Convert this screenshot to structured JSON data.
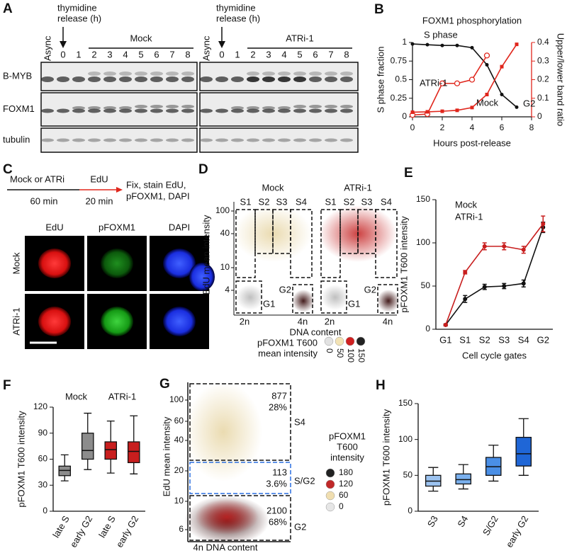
{
  "panel_a": {
    "letter": "A",
    "thymidine_release": [
      "thymidine",
      "release (h)"
    ],
    "lanes": [
      "Async",
      "0",
      "1",
      "2",
      "3",
      "4",
      "5",
      "6",
      "7",
      "8"
    ],
    "conditions": [
      "Mock",
      "ATRi-1"
    ],
    "rows": [
      "B-MYB",
      "FOXM1",
      "tubulin"
    ]
  },
  "panel_c": {
    "letter": "C",
    "treatment": "Mock or ATRi",
    "treatment_time": "60 min",
    "pulse": "EdU",
    "pulse_time": "20 min",
    "fix": [
      "Fix, stain EdU,",
      "pFOXM1, DAPI"
    ],
    "channels": [
      "EdU",
      "pFOXM1",
      "DAPI"
    ],
    "conditions": [
      "Mock",
      "ATRi-1"
    ]
  },
  "panel_d": {
    "letter": "D",
    "conditions": [
      "Mock",
      "ATRi-1"
    ],
    "gates": [
      "S1",
      "S2",
      "S3",
      "S4"
    ],
    "g1": "G1",
    "g2": "G2",
    "y_title": "EdU mean intensity",
    "y_ticks": [
      "100",
      "40",
      "10",
      "4"
    ],
    "x_ticks": [
      "2n",
      "4n"
    ],
    "x_title": "DNA content",
    "legend_title": [
      "pFOXM1 T600",
      "mean intensity"
    ],
    "legend_levels": [
      "0",
      "50",
      "100",
      "150"
    ]
  },
  "panel_g": {
    "letter": "G",
    "y_title": "EdU mean intensity",
    "y_ticks": [
      "100",
      "60",
      "40",
      "20",
      "10",
      "6"
    ],
    "x_title": "4n DNA content",
    "gates": [
      {
        "count": "877",
        "percent": "28%",
        "name": "S4"
      },
      {
        "count": "113",
        "percent": "3.6%",
        "name": "S/G2"
      },
      {
        "count": "2100",
        "percent": "68%",
        "name": "G2"
      }
    ],
    "legend_title": [
      "pFOXM1",
      "T600",
      "intensity"
    ],
    "legend_levels": [
      "180",
      "120",
      "60",
      "0"
    ]
  },
  "chart_data": [
    {
      "panel": "B",
      "type": "line",
      "title": "FOXM1 phosphorylation",
      "x_label": "Hours post-release",
      "y_label": "S phase fraction",
      "y2_label": "Upper/lower band ratio",
      "x": [
        0,
        1,
        2,
        3,
        4,
        5,
        6,
        7
      ],
      "xlim": [
        0,
        8
      ],
      "xticks": [
        0,
        2,
        4,
        6,
        8
      ],
      "ylim": [
        0,
        1
      ],
      "yticks": [
        0,
        0.25,
        0.5,
        0.75,
        1
      ],
      "y2lim": [
        0,
        0.4
      ],
      "y2ticks": [
        0,
        0.1,
        0.2,
        0.3,
        0.4
      ],
      "y2_color": "#e0261c",
      "series": [
        {
          "name": "S phase",
          "color": "#111111",
          "marker": "dot",
          "values": [
            0.98,
            0.97,
            0.96,
            0.96,
            0.93,
            0.7,
            0.3,
            0.13
          ]
        },
        {
          "name": "ATRi-1",
          "color": "#e0261c",
          "marker": "open-circle",
          "axis": "y2",
          "values": [
            0.01,
            0.015,
            0.18,
            0.18,
            0.2,
            0.33,
            null,
            null
          ]
        },
        {
          "name": "Mock",
          "color": "#e0261c",
          "marker": "square",
          "axis": "y2",
          "values": [
            0.025,
            0.027,
            0.03,
            0.035,
            0.05,
            0.12,
            0.27,
            0.39
          ]
        }
      ],
      "annotations": [
        "G2"
      ]
    },
    {
      "panel": "E",
      "type": "line",
      "x_label": "Cell cycle gates",
      "y_label": "pFOXM1 T600 intensity",
      "categories": [
        "G1",
        "S1",
        "S2",
        "S3",
        "S4",
        "G2"
      ],
      "ylim": [
        0,
        150
      ],
      "yticks": [
        0,
        50,
        100,
        150
      ],
      "series": [
        {
          "name": "Mock",
          "color": "#111111",
          "values": [
            5,
            35,
            49,
            50,
            53,
            118
          ],
          "errors": [
            1,
            4,
            3,
            3,
            4,
            6
          ]
        },
        {
          "name": "ATRi-1",
          "color": "#c81e1e",
          "values": [
            5,
            66,
            96,
            96,
            92,
            122
          ],
          "errors": [
            1,
            2,
            4,
            4,
            4,
            9
          ]
        }
      ]
    },
    {
      "panel": "F",
      "type": "box",
      "y_label": "pFOXM1 T600 intensity",
      "groups": [
        "Mock",
        "ATRi-1"
      ],
      "group_colors": [
        "#111111",
        "#e0261c"
      ],
      "categories": [
        "late S",
        "early G2",
        "late S",
        "early G2"
      ],
      "colors": [
        "#8c8c8c",
        "#8c8c8c",
        "#c81e1e",
        "#c81e1e"
      ],
      "min": [
        35,
        48,
        44,
        43
      ],
      "q1": [
        41,
        60,
        60,
        56
      ],
      "median": [
        47,
        70,
        71,
        69
      ],
      "q3": [
        52,
        90,
        80,
        80
      ],
      "max": [
        65,
        113,
        104,
        110
      ],
      "ylim": [
        0,
        120
      ],
      "yticks": [
        0,
        30,
        60,
        90,
        120
      ]
    },
    {
      "panel": "H",
      "type": "box",
      "y_label": "pFOXM1 T600 intensity",
      "categories": [
        "S3",
        "S4",
        "S/G2",
        "early G2"
      ],
      "colors": [
        "#9cc3f0",
        "#7ab0ee",
        "#4a8fe6",
        "#1f66d6"
      ],
      "min": [
        28,
        31,
        42,
        50
      ],
      "q1": [
        35,
        38,
        50,
        63
      ],
      "median": [
        42,
        44,
        62,
        80
      ],
      "q3": [
        50,
        52,
        75,
        103
      ],
      "max": [
        61,
        65,
        92,
        129
      ],
      "ylim": [
        0,
        150
      ],
      "yticks": [
        0,
        50,
        100,
        150
      ]
    }
  ]
}
